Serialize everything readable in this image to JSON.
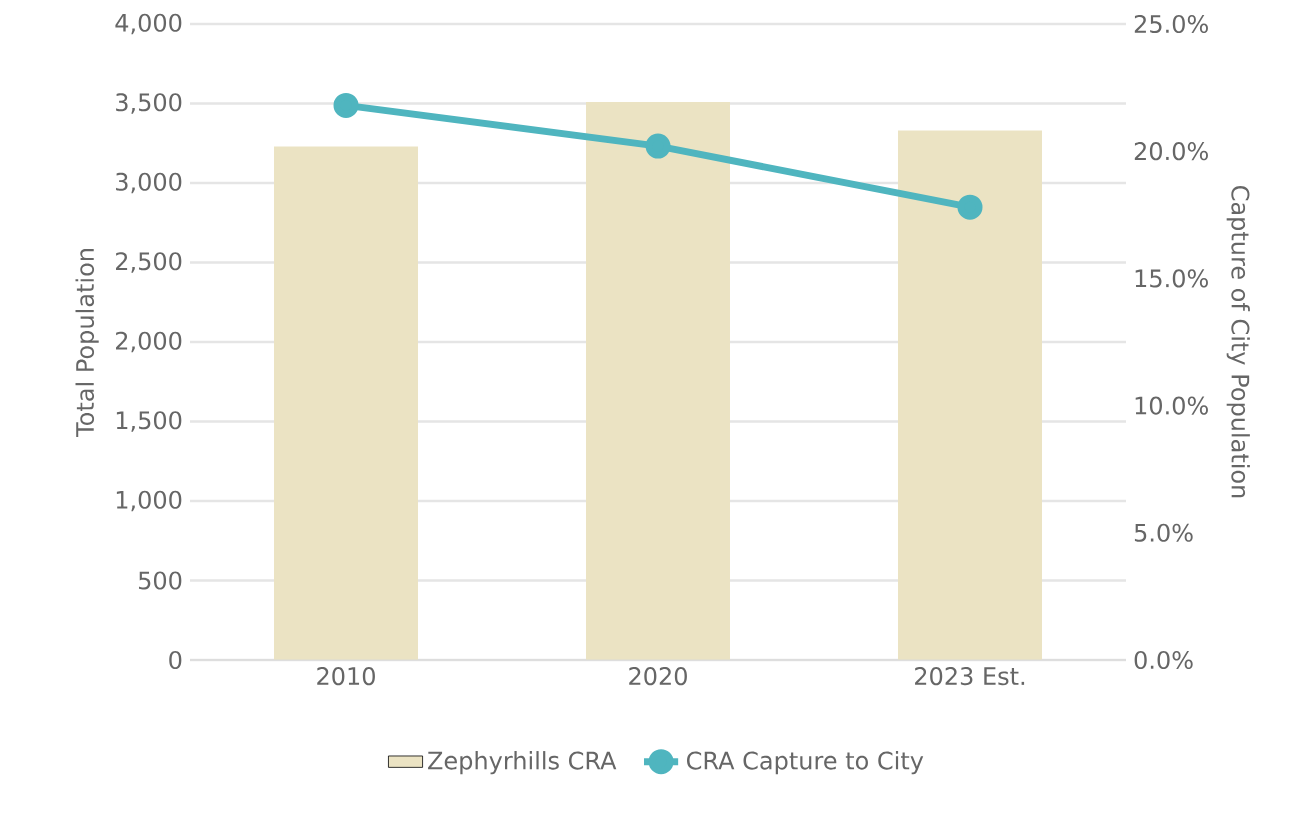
{
  "chart_data": {
    "type": "bar",
    "categories": [
      "2010",
      "2020",
      "2023 Est."
    ],
    "ylabel": "Total Population",
    "y2label": "Capture of City Population",
    "series": [
      {
        "name": "Zephyrhills CRA",
        "color": "#ebe3c3",
        "values": [
          3230,
          3510,
          3330
        ]
      },
      {
        "name": "CRA Capture to City",
        "type": "line",
        "axis": "y2",
        "color": "#4fb5bf",
        "marker": "circle",
        "values": [
          21.8,
          20.2,
          17.8
        ]
      }
    ],
    "ylim": [
      0,
      4000
    ],
    "yticks": [
      {
        "value": 0,
        "label": "0"
      },
      {
        "value": 500,
        "label": "500"
      },
      {
        "value": 1000,
        "label": "1,000"
      },
      {
        "value": 1500,
        "label": "1,500"
      },
      {
        "value": 2000,
        "label": "2,000"
      },
      {
        "value": 2500,
        "label": "2,500"
      },
      {
        "value": 3000,
        "label": "3,000"
      },
      {
        "value": 3500,
        "label": "3,500"
      },
      {
        "value": 4000,
        "label": "4,000"
      }
    ],
    "y2lim": [
      0,
      25
    ],
    "y2ticks": [
      {
        "value": 0,
        "label": "0.0%"
      },
      {
        "value": 5,
        "label": "5.0%"
      },
      {
        "value": 10,
        "label": "10.0%"
      },
      {
        "value": 15,
        "label": "15.0%"
      },
      {
        "value": 20,
        "label": "20.0%"
      },
      {
        "value": 25,
        "label": "25.0%"
      }
    ],
    "grid": "y",
    "legend": "bottom"
  }
}
